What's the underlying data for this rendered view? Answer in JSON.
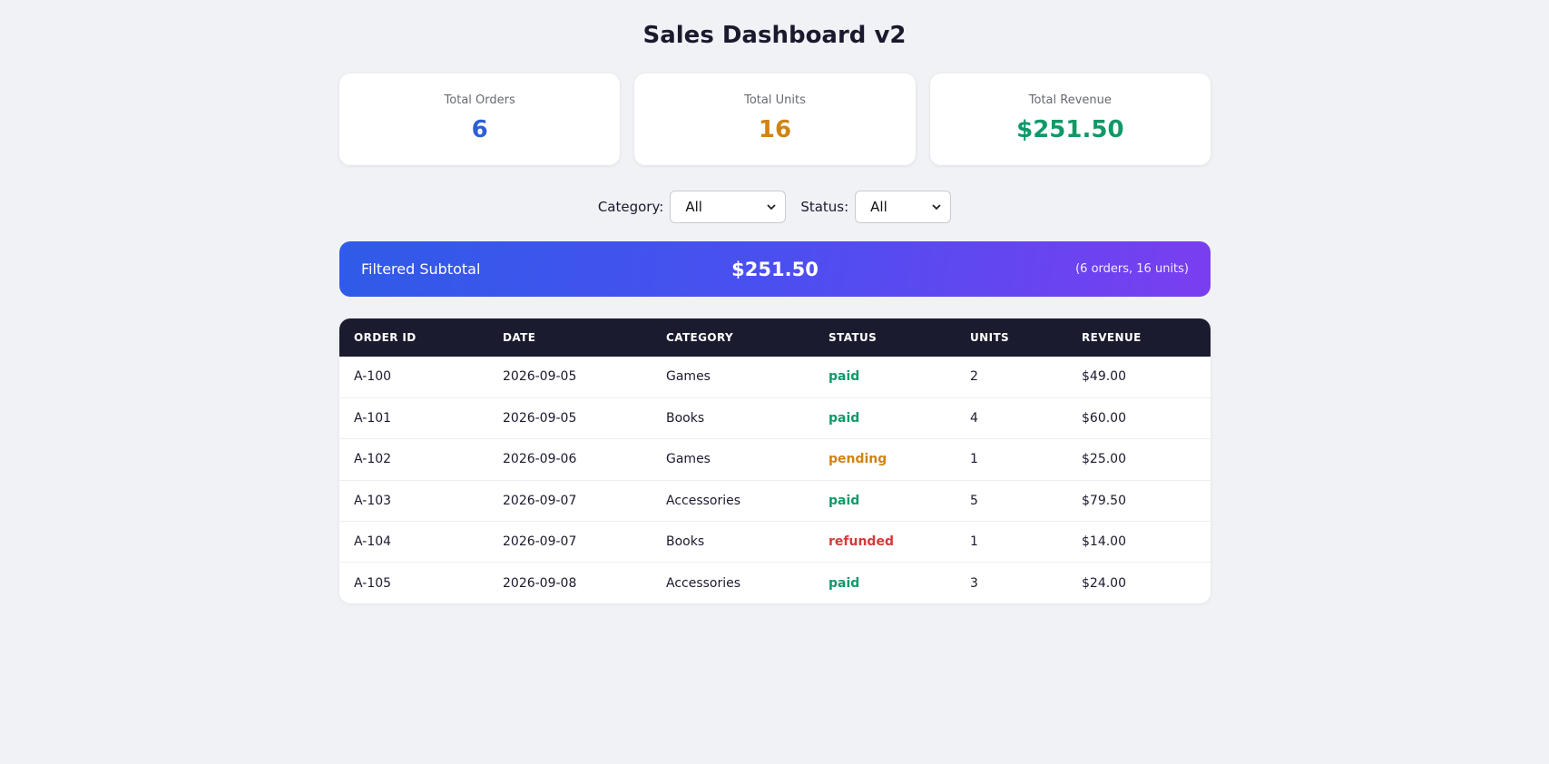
{
  "header": {
    "title": "Sales Dashboard v2"
  },
  "cards": [
    {
      "label": "Total Orders",
      "value": "6",
      "color": "#2d5fd8"
    },
    {
      "label": "Total Units",
      "value": "16",
      "color": "#d08411"
    },
    {
      "label": "Total Revenue",
      "value": "$251.50",
      "color": "#109968"
    }
  ],
  "filters": {
    "category_label": "Category:",
    "category_value": "All",
    "status_label": "Status:",
    "status_value": "All"
  },
  "subtotal": {
    "label": "Filtered Subtotal",
    "amount": "$251.50",
    "meta": "(6 orders, 16 units)"
  },
  "table": {
    "columns": [
      "ORDER ID",
      "DATE",
      "CATEGORY",
      "STATUS",
      "UNITS",
      "REVENUE"
    ],
    "rows": [
      {
        "id": "A-100",
        "date": "2026-09-05",
        "category": "Games",
        "status": "paid",
        "units": "2",
        "revenue": "$49.00"
      },
      {
        "id": "A-101",
        "date": "2026-09-05",
        "category": "Books",
        "status": "paid",
        "units": "4",
        "revenue": "$60.00"
      },
      {
        "id": "A-102",
        "date": "2026-09-06",
        "category": "Games",
        "status": "pending",
        "units": "1",
        "revenue": "$25.00"
      },
      {
        "id": "A-103",
        "date": "2026-09-07",
        "category": "Accessories",
        "status": "paid",
        "units": "5",
        "revenue": "$79.50"
      },
      {
        "id": "A-104",
        "date": "2026-09-07",
        "category": "Books",
        "status": "refunded",
        "units": "1",
        "revenue": "$14.00"
      },
      {
        "id": "A-105",
        "date": "2026-09-08",
        "category": "Accessories",
        "status": "paid",
        "units": "3",
        "revenue": "$24.00"
      }
    ]
  },
  "icons": {
    "dropdown": "chevron-down-icon"
  }
}
